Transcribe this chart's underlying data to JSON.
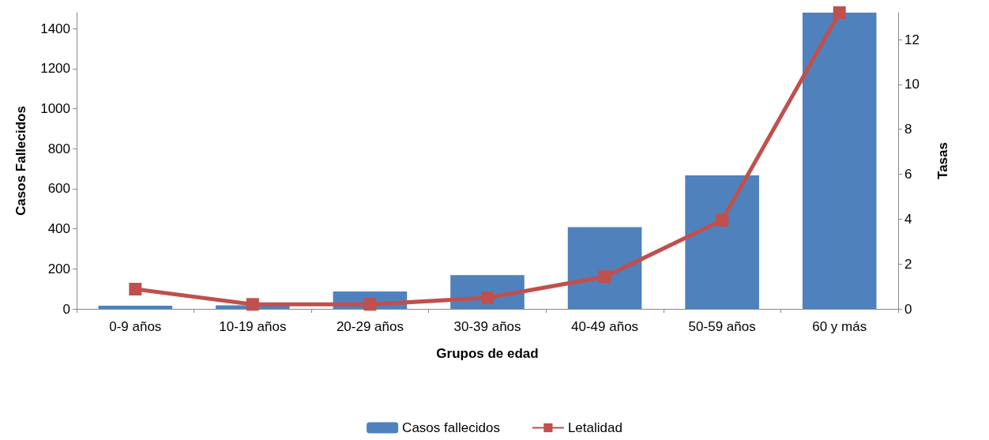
{
  "chart_data": {
    "type": "bar",
    "xlabel": "Grupos de edad",
    "ylabel": "Casos Fallecidos",
    "y2label": "Tasas",
    "categories": [
      "0-9 años",
      "10-19 años",
      "20-29 años",
      "30-39 años",
      "40-49 años",
      "50-59 años",
      "60 y más"
    ],
    "series": [
      {
        "name": "Casos fallecidos",
        "color": "#4f81bd",
        "values": [
          16,
          18,
          87,
          169,
          408,
          667,
          1480
        ]
      },
      {
        "name": "Letalidad",
        "type": "line",
        "axis": "y2",
        "color": "#c0504d",
        "marker": "square",
        "values": [
          0.88,
          0.2,
          0.2,
          0.49,
          1.43,
          3.95,
          13.2
        ]
      }
    ],
    "ylim": [
      0,
      1480
    ],
    "yticks": [
      0,
      200,
      400,
      600,
      800,
      1000,
      1200,
      1400
    ],
    "y2lim": [
      0,
      13.2
    ],
    "y2ticks": [
      0,
      2,
      4,
      6,
      8,
      10,
      12
    ],
    "grid": false,
    "legend": "bottom"
  }
}
